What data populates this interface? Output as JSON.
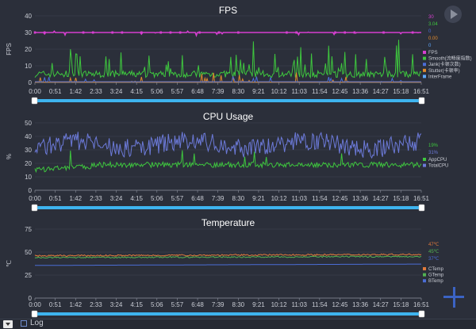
{
  "colors": {
    "background": "#2b2f3a",
    "fps": "#d63fd0",
    "smooth": "#3ec63e",
    "jank": "#4b6dd6",
    "stutter": "#e08a2c",
    "interframe": "#5da9ff",
    "appcpu": "#3ec63e",
    "totalcpu": "#6c7ad9",
    "ctemp": "#e07a3c",
    "gtemp": "#52b352",
    "btemp": "#4b6dd6",
    "slider": "#3eb4ef"
  },
  "icons": {
    "play": "play-icon",
    "add": "plus-icon",
    "dropdown": "chevron-down-icon"
  },
  "x_ticks": [
    "0:00",
    "0:51",
    "1:42",
    "2:33",
    "3:24",
    "4:15",
    "5:06",
    "5:57",
    "6:48",
    "7:39",
    "8:30",
    "9:21",
    "10:12",
    "11:03",
    "11:54",
    "12:45",
    "13:36",
    "14:27",
    "15:18",
    "16:51"
  ],
  "footer": {
    "log_label": "Log"
  },
  "chart_data": [
    {
      "type": "line",
      "title": "FPS",
      "ylabel": "FPS",
      "ylim": [
        0,
        40
      ],
      "yticks": [
        0,
        10,
        20,
        30,
        40
      ],
      "series": [
        {
          "name": "FPS",
          "color": "#d63fd0",
          "current": "30"
        },
        {
          "name": "Smooth(流畅度指数)",
          "color": "#3ec63e",
          "current": "3.04"
        },
        {
          "name": "Jank(卡顿次数)",
          "color": "#4b6dd6",
          "current": "0"
        },
        {
          "name": "Stutter(卡顿率)",
          "color": "#e08a2c",
          "current": "0.00"
        },
        {
          "name": "InterFrame",
          "color": "#5da9ff",
          "current": "0"
        }
      ],
      "legend_position": "right"
    },
    {
      "type": "line",
      "title": "CPU Usage",
      "ylabel": "%",
      "ylim": [
        0,
        50
      ],
      "yticks": [
        0,
        10,
        20,
        30,
        40,
        50
      ],
      "series": [
        {
          "name": "AppCPU",
          "color": "#3ec63e",
          "current": "19%"
        },
        {
          "name": "TotalCPU",
          "color": "#6c7ad9",
          "current": "31%"
        }
      ],
      "legend_position": "right"
    },
    {
      "type": "line",
      "title": "Temperature",
      "ylabel": "℃",
      "ylim": [
        0,
        75
      ],
      "yticks": [
        0,
        25,
        50,
        75
      ],
      "series": [
        {
          "name": "CTemp",
          "color": "#e07a3c",
          "current": "47℃"
        },
        {
          "name": "GTemp",
          "color": "#52b352",
          "current": "45℃"
        },
        {
          "name": "BTemp",
          "color": "#4b6dd6",
          "current": "37℃"
        }
      ],
      "legend_position": "right"
    }
  ]
}
